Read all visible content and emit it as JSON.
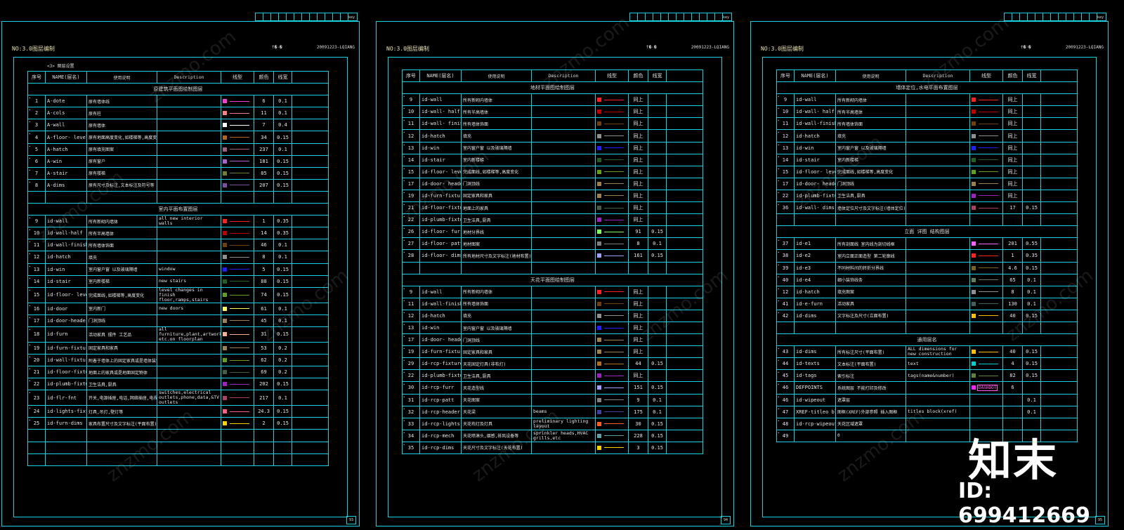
{
  "headers": [
    "序号",
    "NAME(层名)",
    "使用说明",
    "Description",
    "线型",
    "颜色",
    "线宽"
  ],
  "sheets": [
    {
      "title": "NO:3.0图层编制",
      "mid": "ϯ�·�",
      "code": "20091223-LQIANG",
      "caption": "<3> 图层设置",
      "page": "93",
      "rows": [
        {
          "s": "原建筑平面图绘制图层"
        },
        {
          "n": "1",
          "name": "A-dote",
          "use": "原有墙体线",
          "desc": "",
          "sw": "#ff3ccf",
          "ln": "#ff3ccf",
          "clr": "6",
          "lw": "0.1"
        },
        {
          "n": "2",
          "name": "A-cols",
          "use": "原有柱",
          "desc": "",
          "sw": "#ff8080",
          "ln": "#ff8080",
          "clr": "11",
          "lw": "0.1"
        },
        {
          "n": "3",
          "name": "A-wall",
          "use": "原有墙体",
          "desc": "",
          "sw": "#ffffff",
          "ln": "#ffffff",
          "clr": "7",
          "lw": "0.4"
        },
        {
          "n": "4",
          "name": "A-floor- level",
          "use": "原有地面高度变化,如楼梯等,高度变化",
          "desc": "",
          "sw": "#b5651d",
          "ln": "#b5651d",
          "clr": "34",
          "lw": "0.15"
        },
        {
          "n": "5",
          "name": "A-hatch",
          "use": "原有填充图案",
          "desc": "",
          "sw": "#a06080",
          "ln": "#a06080",
          "clr": "237",
          "lw": "0.1"
        },
        {
          "n": "6",
          "name": "A-win",
          "use": "原有窗户",
          "desc": "",
          "sw": "#b060d0",
          "ln": "#b060d0",
          "clr": "181",
          "lw": "0.15"
        },
        {
          "n": "7",
          "name": "A-stair",
          "use": "原有楼梯",
          "desc": "",
          "sw": "#708030",
          "ln": "#708030",
          "clr": "85",
          "lw": "0.15"
        },
        {
          "n": "8",
          "name": "A-dims",
          "use": "原有尺寸及标注,文本标注及符号等",
          "desc": "",
          "sw": "#8050a0",
          "ln": "#8050a0",
          "clr": "207",
          "lw": "0.15"
        },
        {
          "e": 1
        },
        {
          "s": "室内平面布置图层"
        },
        {
          "n": "9",
          "name": "id-wall",
          "use": "所有新砌内墙体",
          "desc": "all new interior walls",
          "sw": "#ff2020",
          "ln": "#ff2020",
          "clr": "1",
          "lw": "0.35"
        },
        {
          "n": "10",
          "name": "id-wall-half",
          "use": "所有半高墙体",
          "desc": "",
          "sw": "#c00000",
          "ln": "#c00000",
          "clr": "14",
          "lw": "0.35"
        },
        {
          "n": "11",
          "name": "id-wall-finished",
          "use": "所有墙体饰面",
          "desc": "",
          "sw": "#704010",
          "ln": "#704010",
          "clr": "46",
          "lw": "0.1"
        },
        {
          "n": "12",
          "name": "id-hatch",
          "use": "填充",
          "desc": "",
          "sw": "#909090",
          "ln": "#909090",
          "clr": "8",
          "lw": "0.1"
        },
        {
          "n": "13",
          "name": "id-win",
          "use": "室内窗户窗 以及玻璃隔墙",
          "desc": "window",
          "sw": "#2020ff",
          "ln": "#2020ff",
          "clr": "5",
          "lw": "0.15"
        },
        {
          "n": "14",
          "name": "id-stair",
          "use": "室内新楼梯",
          "desc": "new stairs",
          "sw": "#206020",
          "ln": "#206020",
          "clr": "88",
          "lw": "0.15"
        },
        {
          "n": "15",
          "name": "id-floor- level",
          "use": "完成面线,如楼梯等,高度变化",
          "desc": "level changes in finish floor,ramps,stairs",
          "sw": "#60a020",
          "ln": "#60a020",
          "clr": "74",
          "lw": "0.15"
        },
        {
          "n": "16",
          "name": "id-door",
          "use": "室内新门",
          "desc": "new doors",
          "sw": "#ffff60",
          "ln": "#ffff60",
          "clr": "61",
          "lw": "0.1"
        },
        {
          "n": "17",
          "name": "id-door-header",
          "use": "门洞顶线",
          "desc": "",
          "sw": "#a08050",
          "ln": "#a08050",
          "clr": "45",
          "lw": "0.1"
        },
        {
          "n": "18",
          "name": "id-furn",
          "use": "活动家具 摆件 工艺品",
          "desc": "all furniture,plant,artwork etc.on floorplan",
          "sw": "#ffb090",
          "ln": "#ffb090",
          "clr": "31",
          "lw": "0.15"
        },
        {
          "n": "19",
          "name": "id-furn-fixtures",
          "use": "固定家具和家具",
          "desc": "",
          "sw": "#a08050",
          "ln": "#a08050",
          "clr": "53",
          "lw": "0.2"
        },
        {
          "n": "20",
          "name": "id-wall-fixtures",
          "use": "附着于墙体上的固定家具或是墙体装饰",
          "desc": "",
          "sw": "#60a020",
          "ln": "#60a020",
          "clr": "62",
          "lw": "0.2"
        },
        {
          "n": "21",
          "name": "id-floor-fixtures",
          "use": "地面上的家具或是地面固定物体",
          "desc": "",
          "sw": "#406040",
          "ln": "#406040",
          "clr": "69",
          "lw": "0.2"
        },
        {
          "n": "22",
          "name": "id-plumb-fixtures",
          "use": "卫生洁具,厨具",
          "desc": "",
          "sw": "#a020c0",
          "ln": "#a020c0",
          "clr": "202",
          "lw": "0.15"
        },
        {
          "n": "23",
          "name": "id-flr-fnt",
          "use": "开关,电源插座,电话,网络插座,电视插座",
          "desc": "switches,electrical outlets,phone,data,&TV outlets",
          "sw": "#b04060",
          "ln": "#b04060",
          "clr": "217",
          "lw": "0.1"
        },
        {
          "n": "24",
          "name": "id-lights-fixtures",
          "use": "灯具,吊灯,壁灯等",
          "desc": "",
          "sw": "#ff6080",
          "ln": "#ff6080",
          "clr": "24.3",
          "lw": "0.15"
        },
        {
          "n": "25",
          "name": "id-furn-dims",
          "use": "家具布置尺寸及文字标注(平面布置)",
          "desc": "",
          "sw": "#ffd000",
          "ln": "#ffd000",
          "clr": "2",
          "lw": "0.15"
        },
        {
          "e": 1
        },
        {
          "e": 1
        },
        {
          "e": 1
        }
      ]
    },
    {
      "title": "NO:3.0图层编制",
      "mid": "ϯ�·�",
      "code": "20091223-LQIANG",
      "caption": "",
      "page": "94",
      "rows": [
        {
          "s": "地材平面图绘制图层"
        },
        {
          "n": "9",
          "name": "id-wall",
          "use": "所有新砌内墙体",
          "desc": "",
          "sw": "#ff2020",
          "ln": "#ff2020",
          "clr": "同上",
          "lw": ""
        },
        {
          "n": "10",
          "name": "id-wall- half",
          "use": "所有半高墙体",
          "desc": "",
          "sw": "#c00000",
          "ln": "#c00000",
          "clr": "同上",
          "lw": ""
        },
        {
          "n": "11",
          "name": "id-wall- finished",
          "use": "所有墙体饰面",
          "desc": "",
          "sw": "#704010",
          "ln": "#704010",
          "clr": "同上",
          "lw": ""
        },
        {
          "n": "12",
          "name": "id-hatch",
          "use": "填充",
          "desc": "",
          "sw": "#909090",
          "ln": "#909090",
          "clr": "同上",
          "lw": ""
        },
        {
          "n": "13",
          "name": "id-win",
          "use": "室内窗户窗 以及玻璃隔墙",
          "desc": "",
          "sw": "#2020ff",
          "ln": "#2020ff",
          "clr": "同上",
          "lw": ""
        },
        {
          "n": "14",
          "name": "id-stair",
          "use": "室内新楼梯",
          "desc": "",
          "sw": "#206020",
          "ln": "#206020",
          "clr": "同上",
          "lw": ""
        },
        {
          "n": "15",
          "name": "id-floor- level",
          "use": "完成面线,如楼梯等,高度变化",
          "desc": "",
          "sw": "#60a020",
          "ln": "#60a020",
          "clr": "同上",
          "lw": ""
        },
        {
          "n": "17",
          "name": "id-door- header",
          "use": "门洞顶线",
          "desc": "",
          "sw": "#a08050",
          "ln": "#a08050",
          "clr": "同上",
          "lw": ""
        },
        {
          "n": "19",
          "name": "id-furn-fixtures",
          "use": "固定家具和家具",
          "desc": "",
          "sw": "#a08050",
          "ln": "#a08050",
          "clr": "同上",
          "lw": ""
        },
        {
          "n": "21",
          "name": "id-floor-fixtures",
          "use": "地面上的家具",
          "desc": "",
          "sw": "#406040",
          "ln": "#406040",
          "clr": "同上",
          "lw": ""
        },
        {
          "n": "22",
          "name": "id-plumb-fixtures",
          "use": "卫生洁具,厨具",
          "desc": "",
          "sw": "#a020c0",
          "ln": "#a020c0",
          "clr": "同上",
          "lw": ""
        },
        {
          "n": "26",
          "name": "id-floor- furr",
          "use": "地材分界线",
          "desc": "",
          "sw": "#80ff60",
          "ln": "#80ff60",
          "clr": "91",
          "lw": "0.15"
        },
        {
          "n": "27",
          "name": "id-floor- patt",
          "use": "地材图案",
          "desc": "",
          "sw": "#808080",
          "ln": "#808080",
          "clr": "8",
          "lw": "0.1"
        },
        {
          "n": "28",
          "name": "id-floor- dims",
          "use": "所有地材尺寸及文字标注(地材布置)",
          "desc": "",
          "sw": "#a0a0ff",
          "ln": "#a0a0ff",
          "clr": "161",
          "lw": "0.15"
        },
        {
          "e": 1
        },
        {
          "s": "天花平面图绘制图层"
        },
        {
          "n": "9",
          "name": "id-wall",
          "use": "所有新砌内墙体",
          "desc": "",
          "sw": "#ff2020",
          "ln": "#ff2020",
          "clr": "同上",
          "lw": ""
        },
        {
          "n": "11",
          "name": "id-wall-finished",
          "use": "所有墙体饰面",
          "desc": "",
          "sw": "#704010",
          "ln": "#704010",
          "clr": "同上",
          "lw": ""
        },
        {
          "n": "12",
          "name": "id-hatch",
          "use": "填充",
          "desc": "",
          "sw": "#909090",
          "ln": "#909090",
          "clr": "同上",
          "lw": ""
        },
        {
          "n": "13",
          "name": "id-win",
          "use": "室内窗户窗 以及玻璃隔墙",
          "desc": "",
          "sw": "#2020ff",
          "ln": "#2020ff",
          "clr": "同上",
          "lw": ""
        },
        {
          "n": "17",
          "name": "id-door- header",
          "use": "门洞顶线",
          "desc": "",
          "sw": "#a08050",
          "ln": "#a08050",
          "clr": "同上",
          "lw": ""
        },
        {
          "n": "19",
          "name": "id-furn-fixtures",
          "use": "固定家具和家具",
          "desc": "",
          "sw": "#a08050",
          "ln": "#a08050",
          "clr": "同上",
          "lw": ""
        },
        {
          "n": "29",
          "name": "id-rcp-fixtures",
          "use": "天花固定灯具(非布灯)",
          "desc": "",
          "sw": "#b07020",
          "ln": "#b07020",
          "clr": "44",
          "lw": "0.15"
        },
        {
          "n": "22",
          "name": "id-plumb-fixtures",
          "use": "卫生洁具,厨具",
          "desc": "",
          "sw": "#a020c0",
          "ln": "#a020c0",
          "clr": "同上",
          "lw": ""
        },
        {
          "n": "30",
          "name": "id-rcp-furr",
          "use": "天花造型线",
          "desc": "",
          "sw": "#a0a0ff",
          "ln": "#a0a0ff",
          "clr": "151",
          "lw": "0.15"
        },
        {
          "n": "31",
          "name": "id-rcp-patt",
          "use": "天花图案",
          "desc": "",
          "sw": "#808080",
          "ln": "#808080",
          "clr": "9",
          "lw": "0.1"
        },
        {
          "n": "32",
          "name": "id-rcp-header",
          "use": "天花梁",
          "desc": "beams",
          "sw": "#4040a0",
          "ln": "#4040a0",
          "clr": "175",
          "lw": "0.1"
        },
        {
          "n": "33",
          "name": "id-rcp-lights",
          "use": "天花布灯及灯具",
          "desc": "preliminary lighting layout",
          "sw": "#ff6020",
          "ln": "#ff6020",
          "clr": "30",
          "lw": "0.15"
        },
        {
          "n": "34",
          "name": "id-rcp-mech",
          "use": "天花喷淋头,烟感,排风设备等",
          "desc": "sprinkler heads,HVAC grills,etc",
          "sw": "#60a0a0",
          "ln": "#60a0a0",
          "clr": "228",
          "lw": "0.15"
        },
        {
          "n": "35",
          "name": "id-rcp-dims",
          "use": "天花尺寸及文字标注(天花布置)",
          "desc": "",
          "sw": "#ffd000",
          "ln": "#ffd000",
          "clr": "3",
          "lw": "0.15"
        }
      ]
    },
    {
      "title": "NO:3.0图层编制",
      "mid": "Ϯ�·�",
      "code": "20091223-LQIANG",
      "caption": "",
      "page": "95",
      "rows": [
        {
          "s": "墙体定位,水电平面布置图层"
        },
        {
          "n": "9",
          "name": "id-wall",
          "use": "所有新砌内墙体",
          "desc": "",
          "sw": "#ff2020",
          "ln": "#ff2020",
          "clr": "同上",
          "lw": ""
        },
        {
          "n": "10",
          "name": "id-wall- half",
          "use": "所有半高墙体",
          "desc": "",
          "sw": "#c00000",
          "ln": "#c00000",
          "clr": "同上",
          "lw": ""
        },
        {
          "n": "11",
          "name": "id-wall-finished",
          "use": "所有墙体饰面",
          "desc": "",
          "sw": "#704010",
          "ln": "#704010",
          "clr": "同上",
          "lw": ""
        },
        {
          "n": "12",
          "name": "id-hatch",
          "use": "填充",
          "desc": "",
          "sw": "#909090",
          "ln": "#909090",
          "clr": "同上",
          "lw": ""
        },
        {
          "n": "13",
          "name": "id-win",
          "use": "室内窗户窗 以及玻璃隔墙",
          "desc": "",
          "sw": "#2020ff",
          "ln": "#2020ff",
          "clr": "同上",
          "lw": ""
        },
        {
          "n": "14",
          "name": "id-stair",
          "use": "室内新楼梯",
          "desc": "",
          "sw": "#206020",
          "ln": "#206020",
          "clr": "同上",
          "lw": ""
        },
        {
          "n": "15",
          "name": "id-floor- level",
          "use": "完成面线,如楼梯等,高度变化",
          "desc": "",
          "sw": "#60a020",
          "ln": "#60a020",
          "clr": "同上",
          "lw": ""
        },
        {
          "n": "17",
          "name": "id-door- header",
          "use": "门洞顶线",
          "desc": "",
          "sw": "#a08050",
          "ln": "#a08050",
          "clr": "同上",
          "lw": ""
        },
        {
          "n": "22",
          "name": "id-plumb-fixtures",
          "use": "卫生洁具,厨具",
          "desc": "",
          "sw": "#a020c0",
          "ln": "#a020c0",
          "clr": "同上",
          "lw": ""
        },
        {
          "n": "36",
          "name": "id-wall- dims",
          "use": "墙体定位尺寸及文字标注(墙体定位)",
          "desc": "",
          "sw": "#b04060",
          "ln": "#b04060",
          "clr": "17",
          "lw": "0.15"
        },
        {
          "e": 1
        },
        {
          "s": "立面 详图 结构图层"
        },
        {
          "n": "37",
          "name": "id-e1",
          "use": "所有剖面线 室内线为剖切线框",
          "desc": "",
          "sw": "#ff60ff",
          "ln": "#ff60ff",
          "clr": "201",
          "lw": "0.55"
        },
        {
          "n": "38",
          "name": "id-e2",
          "use": "室内立面正面造型 第二轮廓线",
          "desc": "",
          "sw": "#ff2020",
          "ln": "#ff2020",
          "clr": "1",
          "lw": "0.35"
        },
        {
          "n": "39",
          "name": "id-e3",
          "use": "不同材料间的转折分界线",
          "desc": "",
          "sw": "#806020",
          "ln": "#806020",
          "clr": "4.6",
          "lw": "0.15"
        },
        {
          "n": "40",
          "name": "id-e4",
          "use": "细小装饰线条",
          "desc": "",
          "sw": "#608060",
          "ln": "#608060",
          "clr": "65",
          "lw": "0.1"
        },
        {
          "n": "12",
          "name": "id-hatch",
          "use": "填充图案",
          "desc": "",
          "sw": "#909090",
          "ln": "#909090",
          "clr": "8",
          "lw": "0.1"
        },
        {
          "n": "41",
          "name": "id-e-furn",
          "use": "活动家具",
          "desc": "",
          "sw": "#406060",
          "ln": "#406060",
          "clr": "130",
          "lw": "0.1"
        },
        {
          "n": "42",
          "name": "id-dims",
          "use": "文字标注及尺寸(立面布置)",
          "desc": "",
          "sw": "#ffc000",
          "ln": "#ffc000",
          "clr": "40",
          "lw": "0.15"
        },
        {
          "e": 1
        },
        {
          "s": "通用层名"
        },
        {
          "n": "43",
          "name": "id-dims",
          "use": "所有标注尺寸(平面布置)",
          "desc": "ALL dimensions for new construction",
          "sw": "#ffc000",
          "ln": "#ffc000",
          "clr": "40",
          "lw": "0.15"
        },
        {
          "n": "44",
          "name": "id-texts",
          "use": "文本标注(平面布置)",
          "desc": "text",
          "sw": "#00d0d0",
          "ln": "#00d0d0",
          "clr": "4",
          "lw": "0.15"
        },
        {
          "n": "45",
          "name": "id-tags",
          "use": "索引标注",
          "desc": "tags(name&number)",
          "sw": "#608040",
          "ln": "#608040",
          "clr": "82",
          "lw": "0.15"
        },
        {
          "n": "46",
          "name": "DEFPOINTS",
          "use": "系统图层 不能打印及修改",
          "desc": "",
          "sw": "#ff20ff",
          "ln": "",
          "clr": "6",
          "lw": "",
          "tag": "DASHDOT"
        },
        {
          "n": "46",
          "name": "id-wipeout",
          "use": "遮罩层",
          "desc": "",
          "sw": "",
          "ln": "",
          "clr": "",
          "lw": "0.1"
        },
        {
          "n": "47",
          "name": "XREF-titleo block",
          "use": "图框(XREF)外部参照 插入图框",
          "desc": "titles block(xref)",
          "sw": "",
          "ln": "",
          "clr": "",
          "lw": "0.1"
        },
        {
          "n": "48",
          "name": "id-rcp-wipeout",
          "use": "天花区域遮罩",
          "desc": "",
          "sw": "",
          "ln": "",
          "clr": "",
          "lw": ""
        },
        {
          "n": "49",
          "name": "",
          "use": "0",
          "desc": "",
          "sw": "",
          "ln": "",
          "clr": "",
          "lw": ""
        }
      ]
    }
  ],
  "brand": {
    "logo": "知末",
    "id": "ID: 699412669"
  },
  "watermark": "znzmo.com"
}
